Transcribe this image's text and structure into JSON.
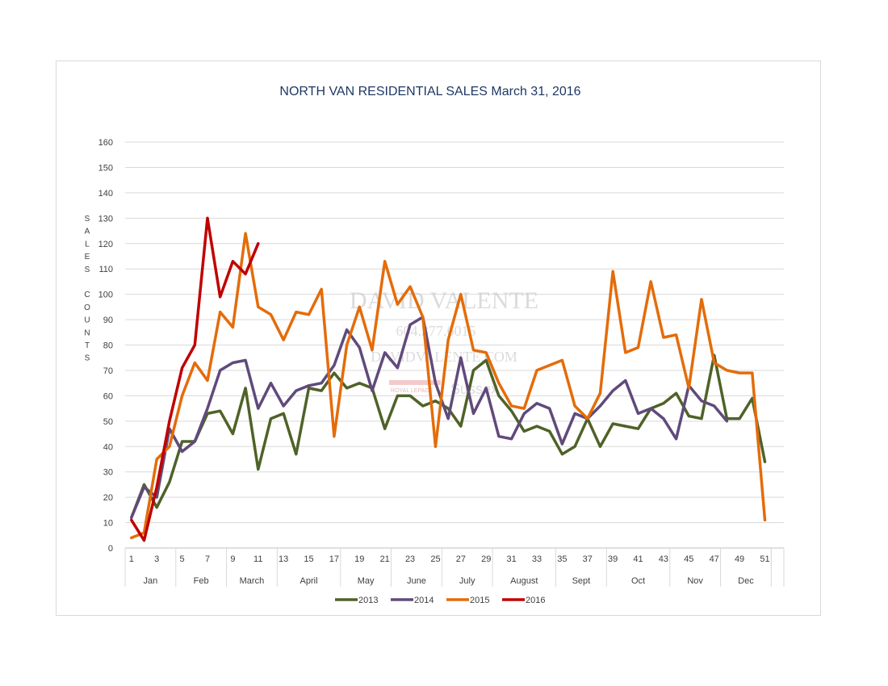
{
  "chart_data": {
    "type": "line",
    "title": "NORTH VAN RESIDENTIAL SALES March 31, 2016",
    "ylabel_lines": [
      "S",
      "A",
      "L",
      "E",
      "S",
      "",
      "C",
      "O",
      "U",
      "N",
      "T",
      "S"
    ],
    "ylim": [
      0,
      160
    ],
    "yticks": [
      0,
      10,
      20,
      30,
      40,
      50,
      60,
      70,
      80,
      90,
      100,
      110,
      120,
      130,
      140,
      150,
      160
    ],
    "xlim": [
      1,
      52
    ],
    "xticks": [
      1,
      3,
      5,
      7,
      9,
      11,
      13,
      15,
      17,
      19,
      21,
      23,
      25,
      27,
      29,
      31,
      33,
      35,
      37,
      39,
      41,
      43,
      45,
      47,
      49,
      51
    ],
    "months": [
      {
        "label": "Jan",
        "start": 1,
        "end": 4
      },
      {
        "label": "Feb",
        "start": 5,
        "end": 8
      },
      {
        "label": "March",
        "start": 9,
        "end": 12
      },
      {
        "label": "April",
        "start": 13,
        "end": 17
      },
      {
        "label": "May",
        "start": 18,
        "end": 21
      },
      {
        "label": "June",
        "start": 22,
        "end": 25
      },
      {
        "label": "July",
        "start": 26,
        "end": 29
      },
      {
        "label": "August",
        "start": 30,
        "end": 34
      },
      {
        "label": "Sept",
        "start": 35,
        "end": 38
      },
      {
        "label": "Oct",
        "start": 39,
        "end": 43
      },
      {
        "label": "Nov",
        "start": 44,
        "end": 47
      },
      {
        "label": "Dec",
        "start": 48,
        "end": 51
      }
    ],
    "legend_position": "bottom",
    "grid": true,
    "series": [
      {
        "name": "2013",
        "color": "#4f6228",
        "values": [
          12,
          25,
          16,
          26,
          42,
          42,
          53,
          54,
          45,
          63,
          31,
          51,
          53,
          37,
          63,
          62,
          69,
          63,
          65,
          63,
          47,
          60,
          60,
          56,
          58,
          55,
          48,
          70,
          74,
          60,
          54,
          46,
          48,
          46,
          37,
          40,
          51,
          40,
          49,
          48,
          47,
          55,
          57,
          61,
          52,
          51,
          76,
          51,
          51,
          59,
          34
        ]
      },
      {
        "name": "2014",
        "color": "#604a7b",
        "values": [
          12,
          24,
          20,
          47,
          38,
          42,
          55,
          70,
          73,
          74,
          55,
          65,
          56,
          62,
          64,
          65,
          72,
          86,
          79,
          62,
          77,
          71,
          88,
          91,
          65,
          51,
          75,
          53,
          63,
          44,
          43,
          53,
          57,
          55,
          41,
          53,
          51,
          56,
          62,
          66,
          53,
          55,
          51,
          43,
          64,
          58,
          56,
          50
        ]
      },
      {
        "name": "2015",
        "color": "#e46c0a",
        "values": [
          4,
          6,
          35,
          40,
          60,
          73,
          66,
          93,
          87,
          124,
          95,
          92,
          82,
          93,
          92,
          102,
          44,
          80,
          95,
          78,
          113,
          96,
          103,
          91,
          40,
          82,
          100,
          78,
          77,
          65,
          56,
          55,
          70,
          72,
          74,
          56,
          51,
          61,
          109,
          77,
          79,
          105,
          83,
          84,
          63,
          98,
          73,
          70,
          69,
          69,
          11
        ]
      },
      {
        "name": "2016",
        "color": "#c00000",
        "values": [
          11,
          3,
          24,
          50,
          71,
          80,
          130,
          99,
          113,
          108,
          120
        ]
      }
    ]
  },
  "watermark": {
    "name": "DAVID VALENTE",
    "phone": "604.377.6015",
    "site": "DAVIDVALENTE.COM",
    "brokerage": "ROYAL LEPAGE",
    "office": "Sussex"
  }
}
